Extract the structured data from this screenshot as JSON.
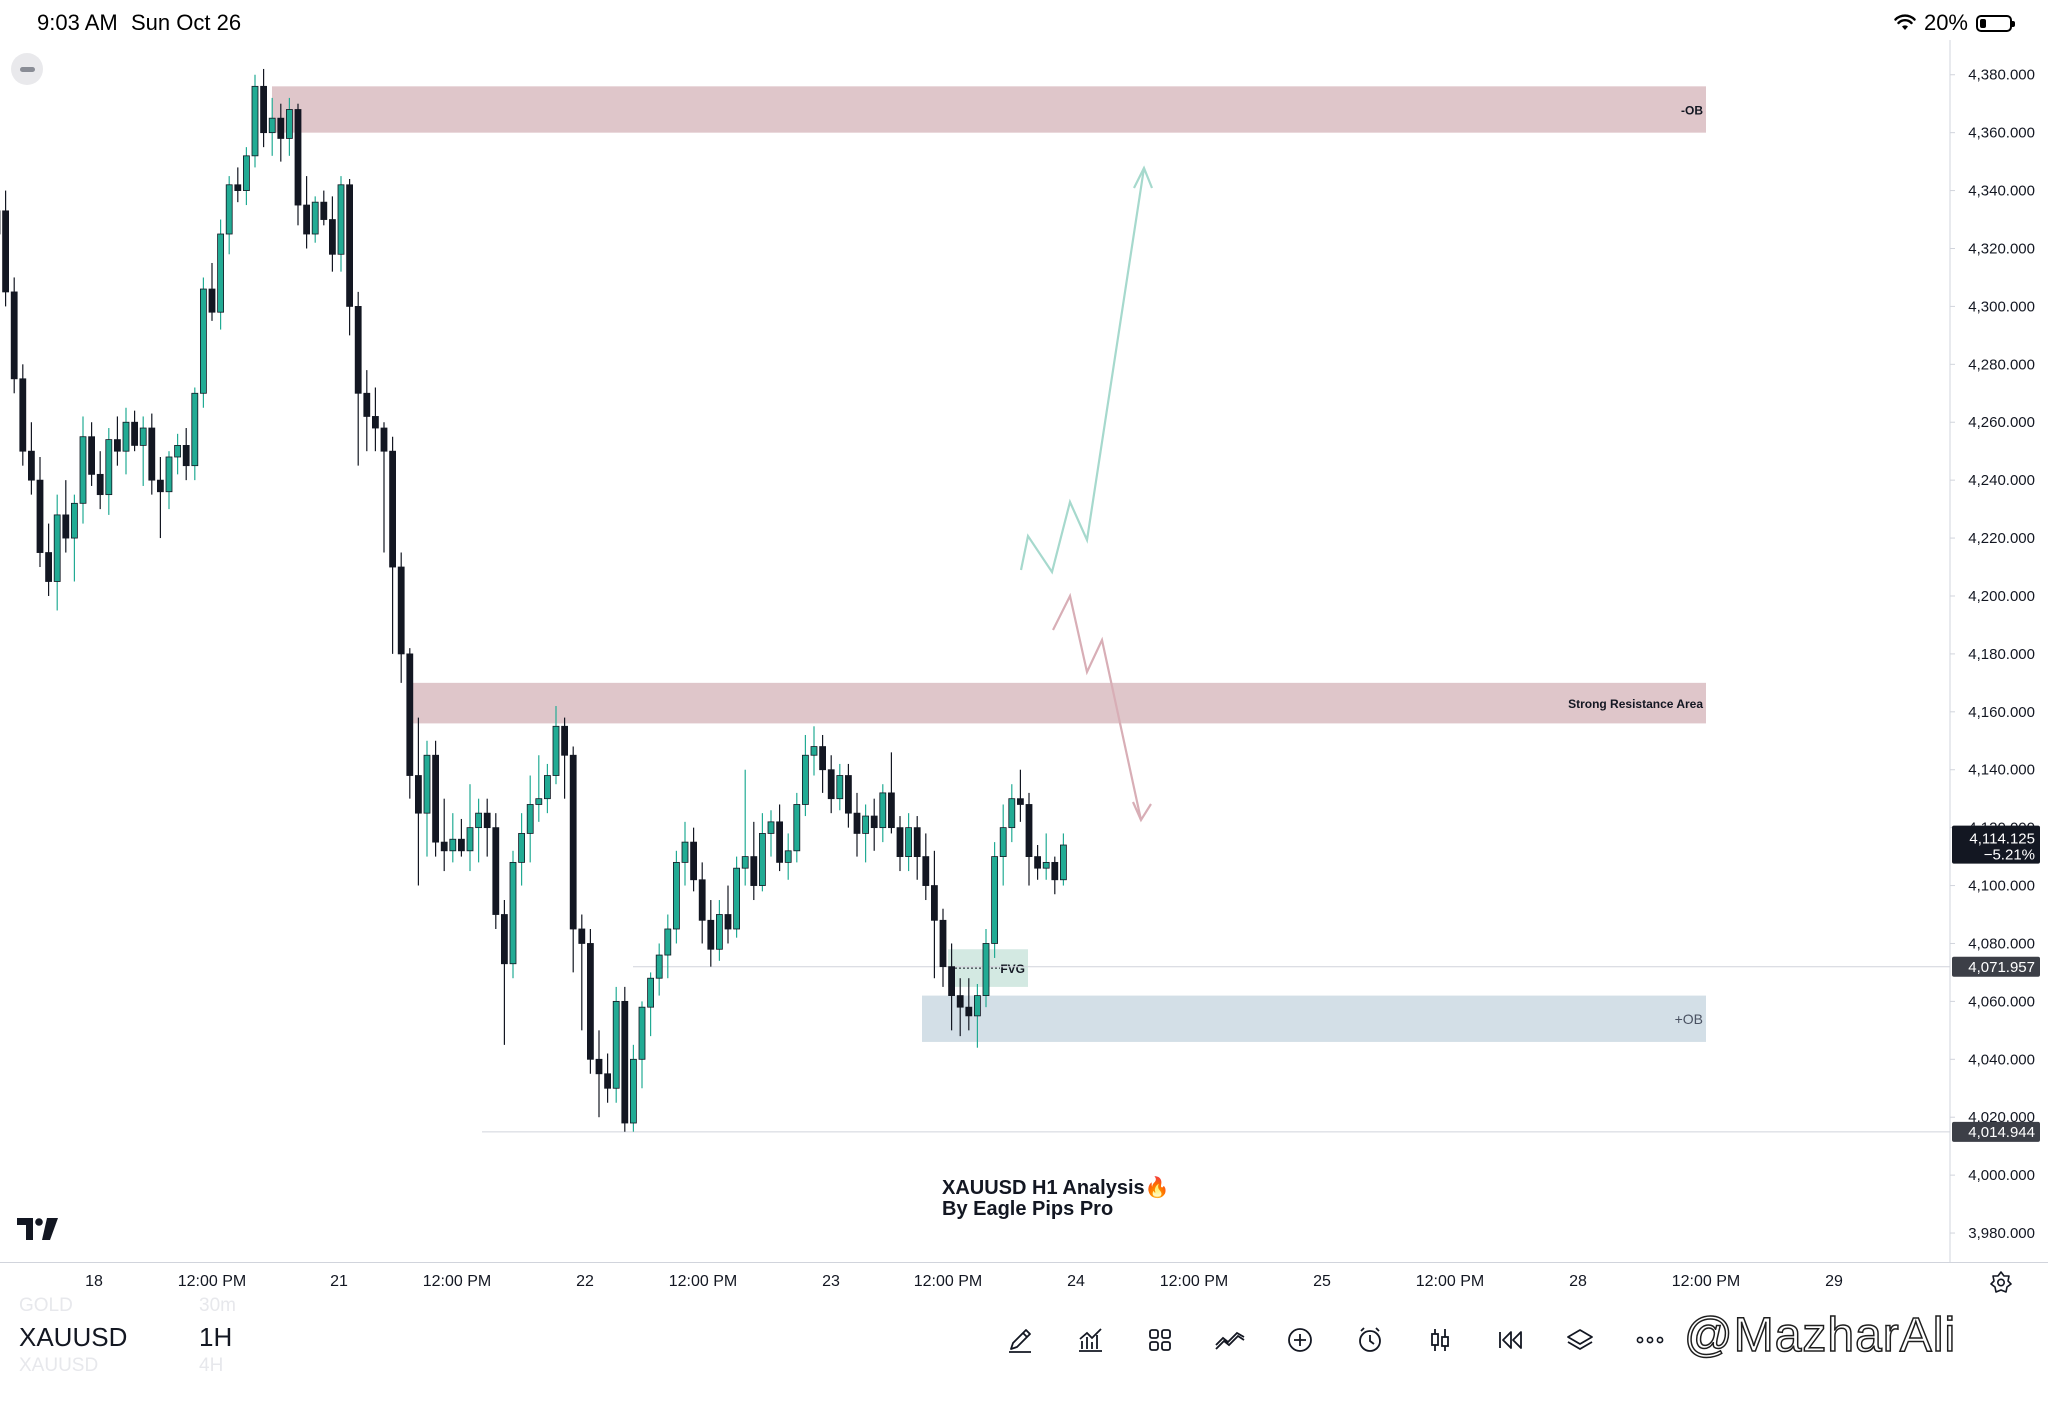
{
  "status_bar": {
    "time": "9:03 AM",
    "date": "Sun Oct 26",
    "battery": "20%"
  },
  "chart_data": {
    "type": "candlestick",
    "symbol": "XAUUSD",
    "interval": "1H",
    "ylim": [
      3970,
      4392
    ],
    "y_ticks": [
      "4,380.000",
      "4,360.000",
      "4,340.000",
      "4,320.000",
      "4,300.000",
      "4,280.000",
      "4,260.000",
      "4,240.000",
      "4,220.000",
      "4,200.000",
      "4,180.000",
      "4,160.000",
      "4,140.000",
      "4,120.000",
      "4,100.000",
      "4,080.000",
      "4,060.000",
      "4,040.000",
      "4,020.000",
      "4,000.000",
      "3,980.000"
    ],
    "x_ticks": [
      "18",
      "12:00 PM",
      "21",
      "12:00 PM",
      "22",
      "12:00 PM",
      "23",
      "12:00 PM",
      "24",
      "12:00 PM",
      "25",
      "12:00 PM",
      "28",
      "12:00 PM",
      "29"
    ],
    "price_label": "4,114.125",
    "price_change": "−5.21%",
    "level_label_1": "4,071.957",
    "level_label_2": "4,014.944",
    "level_1": 4071.957,
    "level_2": 4014.944,
    "zones": [
      {
        "label": "-OB",
        "top": 4376,
        "bottom": 4360,
        "color": "#dfc6ca"
      },
      {
        "label": "Strong Resistance  Area",
        "top": 4170,
        "bottom": 4156,
        "color": "#dfc6ca"
      },
      {
        "label": "FVG",
        "top": 4078,
        "bottom": 4065,
        "color": "#d3e9e2"
      },
      {
        "label": "+OB",
        "top": 4062,
        "bottom": 4046,
        "color": "#d3dfe7"
      }
    ],
    "candles": [
      [
        4325,
        4345,
        4315,
        4333
      ],
      [
        4333,
        4340,
        4300,
        4305
      ],
      [
        4305,
        4310,
        4270,
        4275
      ],
      [
        4275,
        4280,
        4245,
        4250
      ],
      [
        4250,
        4260,
        4235,
        4240
      ],
      [
        4240,
        4248,
        4210,
        4215
      ],
      [
        4215,
        4225,
        4200,
        4205
      ],
      [
        4205,
        4235,
        4195,
        4228
      ],
      [
        4228,
        4240,
        4215,
        4220
      ],
      [
        4220,
        4235,
        4205,
        4232
      ],
      [
        4232,
        4262,
        4225,
        4255
      ],
      [
        4255,
        4260,
        4238,
        4242
      ],
      [
        4242,
        4250,
        4230,
        4235
      ],
      [
        4235,
        4258,
        4228,
        4254
      ],
      [
        4254,
        4262,
        4245,
        4250
      ],
      [
        4250,
        4265,
        4242,
        4260
      ],
      [
        4260,
        4264,
        4250,
        4252
      ],
      [
        4252,
        4262,
        4238,
        4258
      ],
      [
        4258,
        4263,
        4235,
        4240
      ],
      [
        4240,
        4248,
        4220,
        4236
      ],
      [
        4236,
        4250,
        4230,
        4248
      ],
      [
        4248,
        4256,
        4242,
        4252
      ],
      [
        4252,
        4258,
        4240,
        4245
      ],
      [
        4245,
        4272,
        4240,
        4270
      ],
      [
        4270,
        4310,
        4265,
        4306
      ],
      [
        4306,
        4315,
        4295,
        4298
      ],
      [
        4298,
        4330,
        4292,
        4325
      ],
      [
        4325,
        4345,
        4318,
        4342
      ],
      [
        4342,
        4348,
        4336,
        4340
      ],
      [
        4340,
        4355,
        4335,
        4352
      ],
      [
        4352,
        4380,
        4348,
        4376
      ],
      [
        4376,
        4382,
        4355,
        4360
      ],
      [
        4360,
        4372,
        4352,
        4365
      ],
      [
        4365,
        4370,
        4350,
        4358
      ],
      [
        4358,
        4372,
        4352,
        4368
      ],
      [
        4368,
        4370,
        4328,
        4335
      ],
      [
        4335,
        4345,
        4320,
        4325
      ],
      [
        4325,
        4338,
        4322,
        4336
      ],
      [
        4336,
        4340,
        4328,
        4330
      ],
      [
        4330,
        4338,
        4312,
        4318
      ],
      [
        4318,
        4345,
        4312,
        4342
      ],
      [
        4342,
        4344,
        4290,
        4300
      ],
      [
        4300,
        4305,
        4245,
        4270
      ],
      [
        4270,
        4278,
        4250,
        4262
      ],
      [
        4262,
        4272,
        4250,
        4258
      ],
      [
        4258,
        4260,
        4215,
        4250
      ],
      [
        4250,
        4255,
        4180,
        4210
      ],
      [
        4210,
        4215,
        4170,
        4180
      ],
      [
        4180,
        4182,
        4130,
        4138
      ],
      [
        4138,
        4158,
        4100,
        4125
      ],
      [
        4125,
        4150,
        4110,
        4145
      ],
      [
        4145,
        4150,
        4110,
        4115
      ],
      [
        4115,
        4130,
        4105,
        4112
      ],
      [
        4112,
        4125,
        4108,
        4116
      ],
      [
        4116,
        4123,
        4110,
        4112
      ],
      [
        4112,
        4135,
        4105,
        4120
      ],
      [
        4120,
        4130,
        4108,
        4125
      ],
      [
        4125,
        4130,
        4110,
        4120
      ],
      [
        4120,
        4125,
        4085,
        4090
      ],
      [
        4090,
        4095,
        4045,
        4073
      ],
      [
        4073,
        4112,
        4068,
        4108
      ],
      [
        4108,
        4125,
        4100,
        4118
      ],
      [
        4118,
        4138,
        4108,
        4128
      ],
      [
        4128,
        4145,
        4122,
        4130
      ],
      [
        4130,
        4142,
        4125,
        4138
      ],
      [
        4138,
        4162,
        4135,
        4155
      ],
      [
        4155,
        4158,
        4130,
        4145
      ],
      [
        4145,
        4148,
        4070,
        4085
      ],
      [
        4085,
        4090,
        4050,
        4080
      ],
      [
        4080,
        4085,
        4035,
        4040
      ],
      [
        4040,
        4050,
        4020,
        4035
      ],
      [
        4035,
        4042,
        4025,
        4030
      ],
      [
        4030,
        4065,
        4025,
        4060
      ],
      [
        4060,
        4065,
        4015,
        4018
      ],
      [
        4018,
        4045,
        4015,
        4040
      ],
      [
        4040,
        4060,
        4030,
        4058
      ],
      [
        4058,
        4070,
        4048,
        4068
      ],
      [
        4068,
        4080,
        4062,
        4076
      ],
      [
        4076,
        4090,
        4068,
        4085
      ],
      [
        4085,
        4112,
        4080,
        4108
      ],
      [
        4108,
        4122,
        4100,
        4115
      ],
      [
        4115,
        4120,
        4098,
        4102
      ],
      [
        4102,
        4108,
        4080,
        4088
      ],
      [
        4088,
        4095,
        4072,
        4078
      ],
      [
        4078,
        4095,
        4074,
        4090
      ],
      [
        4090,
        4100,
        4080,
        4085
      ],
      [
        4085,
        4110,
        4082,
        4106
      ],
      [
        4106,
        4140,
        4100,
        4110
      ],
      [
        4110,
        4122,
        4095,
        4100
      ],
      [
        4100,
        4125,
        4098,
        4118
      ],
      [
        4118,
        4126,
        4110,
        4122
      ],
      [
        4122,
        4128,
        4105,
        4108
      ],
      [
        4108,
        4118,
        4102,
        4112
      ],
      [
        4112,
        4132,
        4108,
        4128
      ],
      [
        4128,
        4152,
        4124,
        4145
      ],
      [
        4145,
        4155,
        4138,
        4148
      ],
      [
        4148,
        4152,
        4132,
        4140
      ],
      [
        4140,
        4145,
        4125,
        4130
      ],
      [
        4130,
        4142,
        4126,
        4138
      ],
      [
        4138,
        4142,
        4120,
        4125
      ],
      [
        4125,
        4132,
        4110,
        4118
      ],
      [
        4118,
        4128,
        4108,
        4124
      ],
      [
        4124,
        4130,
        4112,
        4120
      ],
      [
        4120,
        4135,
        4115,
        4132
      ],
      [
        4132,
        4146,
        4118,
        4120
      ],
      [
        4120,
        4124,
        4105,
        4110
      ],
      [
        4110,
        4125,
        4105,
        4120
      ],
      [
        4120,
        4124,
        4102,
        4110
      ],
      [
        4110,
        4118,
        4095,
        4100
      ],
      [
        4100,
        4112,
        4068,
        4088
      ],
      [
        4088,
        4092,
        4065,
        4072
      ],
      [
        4072,
        4080,
        4050,
        4062
      ],
      [
        4062,
        4068,
        4048,
        4058
      ],
      [
        4058,
        4068,
        4050,
        4055
      ],
      [
        4055,
        4066,
        4044,
        4062
      ],
      [
        4062,
        4085,
        4058,
        4080
      ],
      [
        4080,
        4115,
        4075,
        4110
      ],
      [
        4110,
        4128,
        4100,
        4120
      ],
      [
        4120,
        4135,
        4115,
        4130
      ],
      [
        4130,
        4140,
        4122,
        4128
      ],
      [
        4128,
        4132,
        4100,
        4110
      ],
      [
        4110,
        4114,
        4102,
        4106
      ],
      [
        4106,
        4118,
        4102,
        4108
      ],
      [
        4108,
        4110,
        4097,
        4102
      ],
      [
        4102,
        4118,
        4100,
        4114
      ]
    ]
  },
  "drawings": {
    "fvg_label": "FVG",
    "analysis_title": "XAUUSD H1 Analysis",
    "analysis_subtitle": "By Eagle Pips Pro",
    "fire_emoji": "🔥",
    "bull_path_color": "#a6d9cd",
    "bear_path_color": "#d8aeb6",
    "bull_path": [
      [
        1021,
        530
      ],
      [
        1028,
        496
      ],
      [
        1052,
        532
      ],
      [
        1070,
        462
      ],
      [
        1087,
        500
      ],
      [
        1144,
        128
      ]
    ],
    "bear_path": [
      [
        1053,
        590
      ],
      [
        1070,
        556
      ],
      [
        1087,
        632
      ],
      [
        1102,
        600
      ],
      [
        1141,
        780
      ]
    ]
  },
  "bottom_bar": {
    "ghost_symbol_top": "GOLD",
    "ghost_interval_top": "30m",
    "symbol": "XAUUSD",
    "interval": "1H",
    "ghost_symbol_bottom": "XAUUSD",
    "ghost_interval_bottom": "4H",
    "watermark": "@MazharAli"
  },
  "toolbar": [
    "pencil-icon",
    "indicators-icon",
    "layouts-icon",
    "compare-icon",
    "add-icon",
    "alert-icon",
    "candles-icon",
    "replay-icon",
    "layers-icon",
    "more-icon"
  ]
}
